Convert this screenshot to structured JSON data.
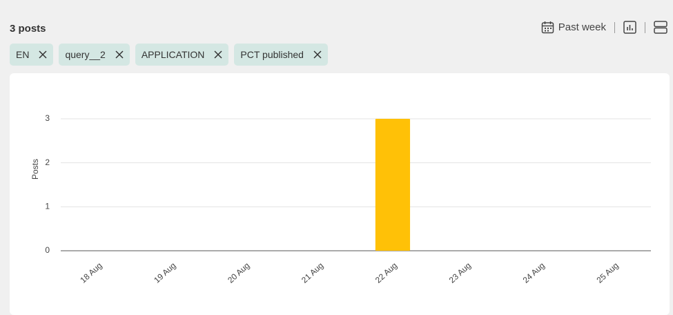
{
  "header": {
    "count_label": "3 posts",
    "period": "Past week"
  },
  "filters": [
    "EN",
    "query__2",
    "APPLICATION",
    "PCT published"
  ],
  "chart_data": {
    "type": "bar",
    "y_label": "Posts",
    "categories": [
      "18 Aug",
      "19 Aug",
      "20 Aug",
      "21 Aug",
      "22 Aug",
      "23 Aug",
      "24 Aug",
      "25 Aug"
    ],
    "values": [
      0,
      0,
      0,
      0,
      3,
      0,
      0,
      0
    ],
    "color": "#ffc107",
    "ylim": [
      0,
      3
    ],
    "yticks": [
      0,
      1,
      2,
      3
    ],
    "grid": true
  }
}
